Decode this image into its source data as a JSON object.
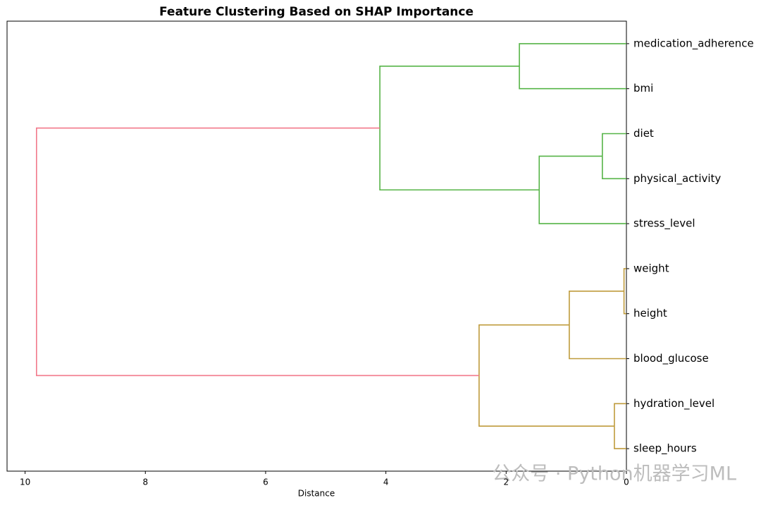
{
  "chart_data": {
    "type": "dendrogram",
    "title": "Feature Clustering Based on SHAP Importance",
    "x_label": "Distance",
    "leaves": [
      "medication_adherence",
      "bmi",
      "diet",
      "physical_activity",
      "stress_level",
      "weight",
      "height",
      "blood_glucose",
      "hydration_level",
      "sleep_hours"
    ],
    "links": [
      {
        "left": 0,
        "right": 1,
        "height": 1.78,
        "color": "#56b447"
      },
      {
        "left": 2,
        "right": 3,
        "height": 0.4,
        "color": "#56b447"
      },
      {
        "left": 11,
        "right": 4,
        "height": 1.45,
        "color": "#56b447"
      },
      {
        "left": 10,
        "right": 12,
        "height": 4.1,
        "color": "#56b447"
      },
      {
        "left": 5,
        "right": 6,
        "height": 0.04,
        "color": "#bf9b3c"
      },
      {
        "left": 14,
        "right": 7,
        "height": 0.95,
        "color": "#bf9b3c"
      },
      {
        "left": 8,
        "right": 9,
        "height": 0.2,
        "color": "#bf9b3c"
      },
      {
        "left": 15,
        "right": 16,
        "height": 2.45,
        "color": "#bf9b3c"
      },
      {
        "left": 13,
        "right": 17,
        "height": 9.81,
        "color": "#f2788a"
      }
    ],
    "xlim": [
      10.3,
      0
    ],
    "xticks": [
      10,
      8,
      6,
      4,
      2,
      0
    ]
  },
  "watermark": "公众号 · Python机器学习ML"
}
